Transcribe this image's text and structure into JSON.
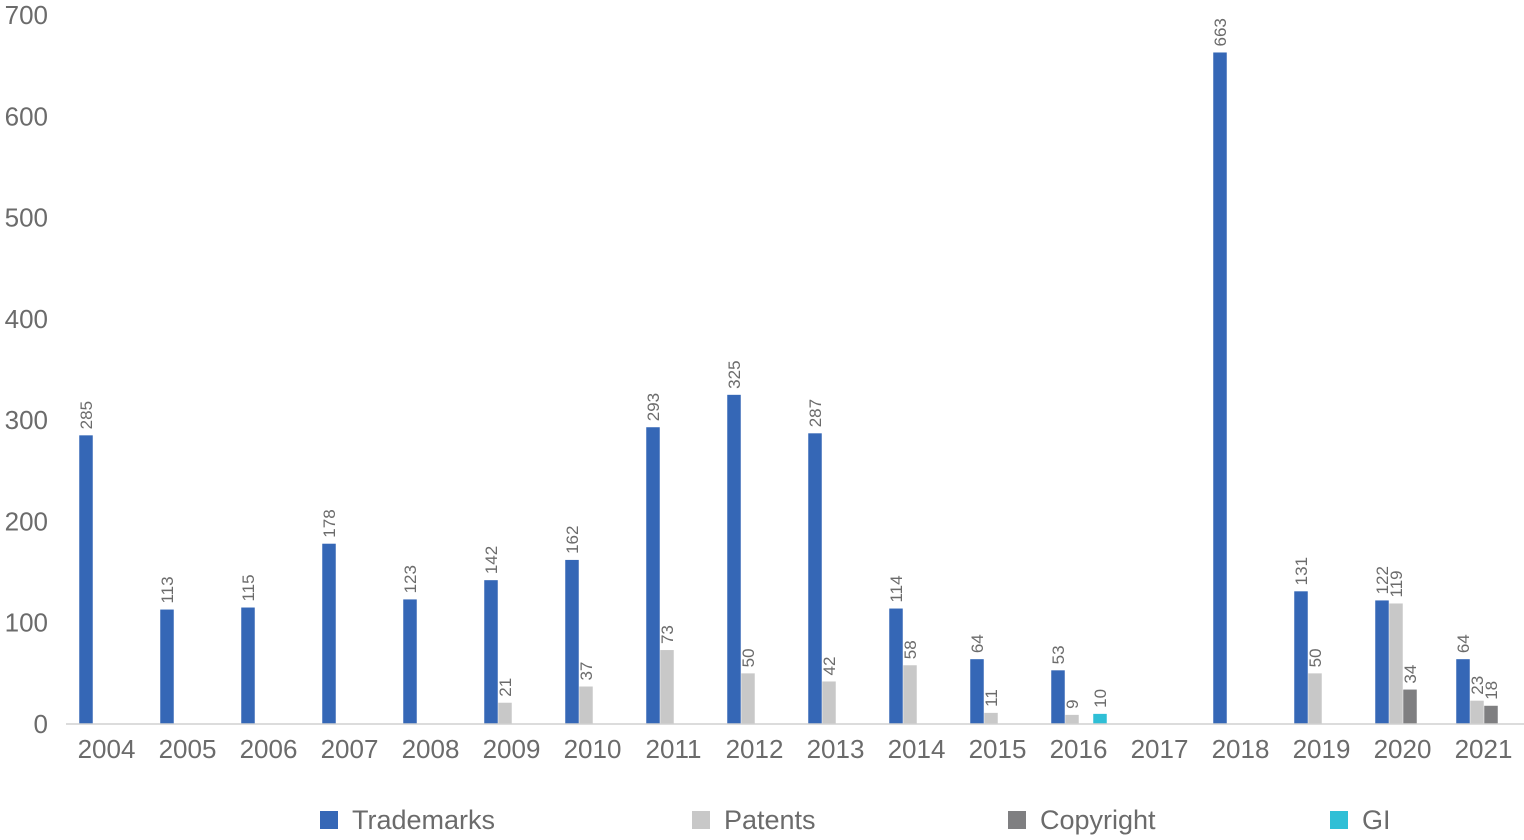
{
  "chart_data": {
    "type": "bar",
    "categories": [
      "2004",
      "2005",
      "2006",
      "2007",
      "2008",
      "2009",
      "2010",
      "2011",
      "2012",
      "2013",
      "2014",
      "2015",
      "2016",
      "2017",
      "2018",
      "2019",
      "2020",
      "2021"
    ],
    "series": [
      {
        "name": "Trademarks",
        "color": "#3567b6",
        "values": [
          285,
          113,
          115,
          178,
          123,
          142,
          162,
          293,
          325,
          287,
          114,
          64,
          53,
          null,
          663,
          131,
          122,
          64
        ]
      },
      {
        "name": "Patents",
        "color": "#c8c8c8",
        "values": [
          null,
          null,
          null,
          null,
          null,
          21,
          37,
          73,
          50,
          42,
          58,
          11,
          9,
          null,
          null,
          50,
          119,
          23
        ]
      },
      {
        "name": "Copyright",
        "color": "#7f7f81",
        "values": [
          null,
          null,
          null,
          null,
          null,
          null,
          null,
          null,
          null,
          null,
          null,
          null,
          null,
          null,
          null,
          null,
          34,
          18
        ]
      },
      {
        "name": "GI",
        "color": "#2fbfd6",
        "values": [
          null,
          null,
          null,
          null,
          null,
          null,
          null,
          null,
          null,
          null,
          null,
          null,
          10,
          null,
          null,
          null,
          null,
          null
        ]
      }
    ],
    "yticks": [
      "0",
      "100",
      "200",
      "300",
      "400",
      "500",
      "600",
      "700"
    ],
    "ylim": [
      0,
      700
    ],
    "grid": false,
    "legend_position": "bottom"
  }
}
